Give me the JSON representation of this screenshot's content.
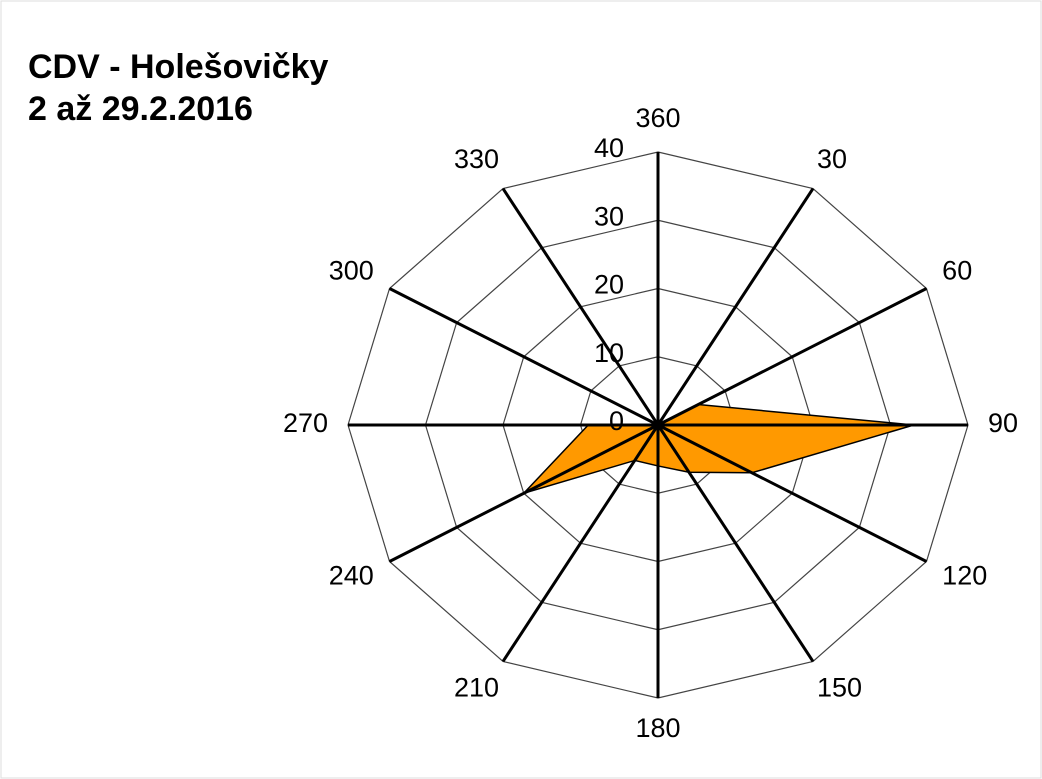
{
  "chart_data": {
    "type": "radar",
    "title": "CDV - Holešovičky",
    "subtitle": "2 až 29.2.2016",
    "categories": [
      "360",
      "30",
      "60",
      "90",
      "120",
      "150",
      "180",
      "210",
      "240",
      "270",
      "300",
      "330"
    ],
    "series": [
      {
        "color": "#ff9900",
        "values": [
          0,
          0,
          6,
          33,
          14,
          8,
          6,
          6,
          20,
          9,
          0,
          0
        ]
      }
    ],
    "rlim": [
      0,
      40
    ],
    "rticks": [
      0,
      10,
      20,
      30,
      40
    ],
    "grid": true
  }
}
